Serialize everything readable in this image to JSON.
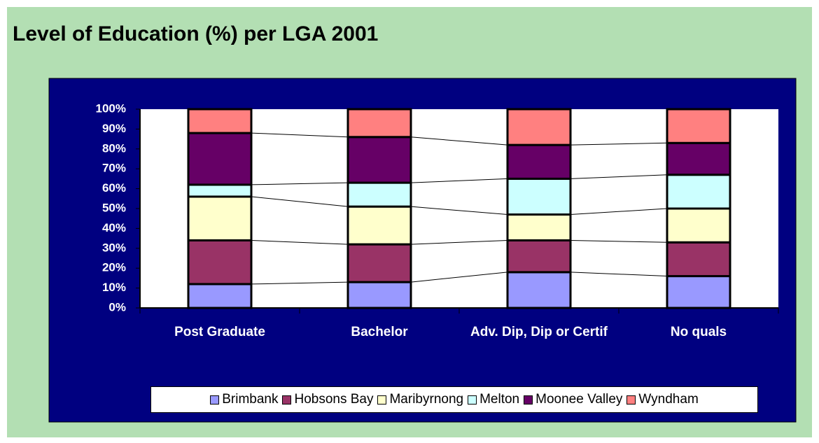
{
  "chart_data": {
    "type": "stacked_bar",
    "title": "Level of Education (%) per LGA 2001",
    "categories": [
      "Post Graduate",
      "Bachelor",
      "Adv. Dip, Dip or Certif",
      "No quals"
    ],
    "series": [
      {
        "name": "Brimbank",
        "color": "#9999ff",
        "values": [
          12,
          13,
          18,
          16
        ]
      },
      {
        "name": "Hobsons Bay",
        "color": "#993366",
        "values": [
          22,
          19,
          16,
          17
        ]
      },
      {
        "name": "Maribyrnong",
        "color": "#ffffcc",
        "values": [
          22,
          19,
          13,
          17
        ]
      },
      {
        "name": "Melton",
        "color": "#ccffff",
        "values": [
          6,
          12,
          18,
          17
        ]
      },
      {
        "name": "Moonee Valley",
        "color": "#660066",
        "values": [
          26,
          23,
          17,
          16
        ]
      },
      {
        "name": "Wyndham",
        "color": "#ff8080",
        "values": [
          12,
          14,
          18,
          17
        ]
      }
    ],
    "ylim": [
      0,
      100
    ],
    "yticks": [
      {
        "value": 0,
        "label": "0%"
      },
      {
        "value": 10,
        "label": "10%"
      },
      {
        "value": 20,
        "label": "20%"
      },
      {
        "value": 30,
        "label": "30%"
      },
      {
        "value": 40,
        "label": "40%"
      },
      {
        "value": 50,
        "label": "50%"
      },
      {
        "value": 60,
        "label": "60%"
      },
      {
        "value": 70,
        "label": "70%"
      },
      {
        "value": 80,
        "label": "80%"
      },
      {
        "value": 90,
        "label": "90%"
      },
      {
        "value": 100,
        "label": "100%"
      }
    ]
  }
}
